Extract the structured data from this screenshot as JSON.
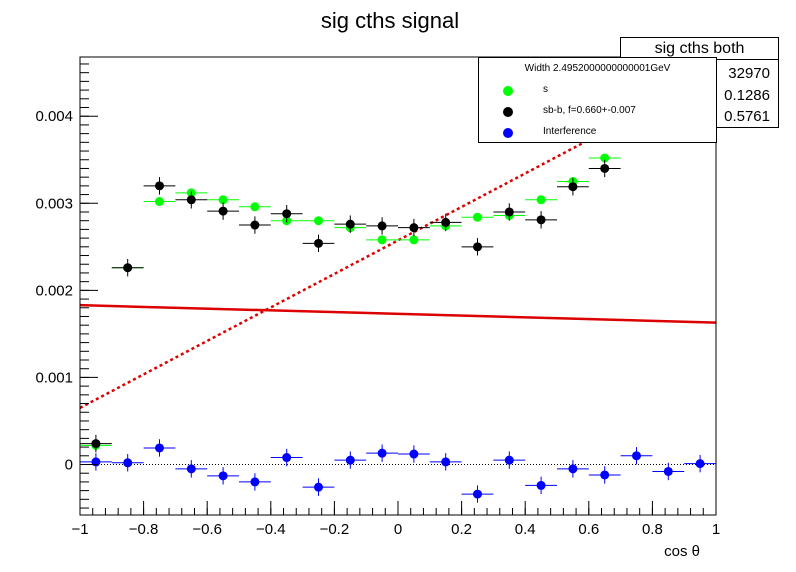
{
  "title": "sig cths signal",
  "stats": {
    "name": "sig cths both",
    "values": [
      "32970",
      "0.1286",
      "0.5761"
    ]
  },
  "legend": {
    "header": "Width 2.4952000000000001GeV",
    "entries": [
      {
        "label": "s",
        "color": "#00ff00"
      },
      {
        "label": "sb-b, f=0.660+-0.007",
        "color": "#000000"
      },
      {
        "label": "Interference",
        "color": "#0000ff"
      }
    ]
  },
  "chart_data": {
    "type": "scatter",
    "title": "sig cths signal",
    "xlabel": "cos  θ",
    "ylabel": "",
    "xlim": [
      -1,
      1
    ],
    "ylim": [
      -0.00058,
      0.00468
    ],
    "x_ticks": [
      -1,
      -0.8,
      -0.6,
      -0.4,
      -0.2,
      0,
      0.2,
      0.4,
      0.6,
      0.8,
      1
    ],
    "x_tick_labels": [
      "−1",
      "−0.8",
      "−0.6",
      "−0.4",
      "−0.2",
      "0",
      "0.2",
      "0.4",
      "0.6",
      "0.8",
      "1"
    ],
    "y_ticks": [
      0,
      0.001,
      0.002,
      0.003,
      0.004
    ],
    "y_tick_labels": [
      "0",
      "0.001",
      "0.002",
      "0.003",
      "0.004"
    ],
    "grid": false,
    "bin_half_width": 0.05,
    "series": [
      {
        "name": "s",
        "color": "#00ff00",
        "x": [
          -0.95,
          -0.85,
          -0.75,
          -0.65,
          -0.55,
          -0.45,
          -0.35,
          -0.25,
          -0.15,
          -0.05,
          0.05,
          0.15,
          0.25,
          0.35,
          0.45,
          0.55,
          0.65
        ],
        "y": [
          0.00022,
          0.00226,
          0.00302,
          0.00312,
          0.00304,
          0.00296,
          0.0028,
          0.0028,
          0.00272,
          0.00258,
          0.00258,
          0.00274,
          0.00284,
          0.00286,
          0.00304,
          0.00325,
          0.00352
        ],
        "yerr": [
          4e-05,
          4e-05,
          4e-05,
          4e-05,
          4e-05,
          4e-05,
          4e-05,
          4e-05,
          4e-05,
          4e-05,
          4e-05,
          4e-05,
          4e-05,
          4e-05,
          4e-05,
          4e-05,
          4e-05
        ]
      },
      {
        "name": "sb-b, f=0.660+-0.007",
        "color": "#000000",
        "x": [
          -0.95,
          -0.85,
          -0.75,
          -0.65,
          -0.55,
          -0.45,
          -0.35,
          -0.25,
          -0.15,
          -0.05,
          0.05,
          0.15,
          0.25,
          0.35,
          0.45,
          0.55,
          0.65
        ],
        "y": [
          0.00024,
          0.00226,
          0.0032,
          0.00304,
          0.00291,
          0.00275,
          0.00288,
          0.00254,
          0.00276,
          0.00274,
          0.00272,
          0.00278,
          0.0025,
          0.0029,
          0.00281,
          0.00319,
          0.0034
        ],
        "yerr": [
          0.0001,
          0.0001,
          0.0001,
          0.0001,
          0.0001,
          0.0001,
          0.0001,
          0.0001,
          0.0001,
          0.0001,
          0.0001,
          0.0001,
          0.0001,
          0.0001,
          0.0001,
          0.0001,
          0.0001
        ]
      },
      {
        "name": "Interference",
        "color": "#0000ff",
        "x": [
          -0.95,
          -0.85,
          -0.75,
          -0.65,
          -0.55,
          -0.45,
          -0.35,
          -0.25,
          -0.15,
          -0.05,
          0.05,
          0.15,
          0.25,
          0.35,
          0.45,
          0.55,
          0.65,
          0.75,
          0.85,
          0.95
        ],
        "y": [
          3e-05,
          2e-05,
          0.00019,
          -5e-05,
          -0.00013,
          -0.0002,
          8e-05,
          -0.00026,
          5e-05,
          0.00013,
          0.00012,
          3e-05,
          -0.00034,
          5e-05,
          -0.00024,
          -5e-05,
          -0.00012,
          0.0001,
          -8e-05,
          1e-05
        ],
        "yerr": [
          0.0001,
          0.0001,
          0.0001,
          0.0001,
          0.0001,
          0.0001,
          0.0001,
          0.0001,
          0.0001,
          0.0001,
          0.0001,
          0.0001,
          0.0001,
          0.0001,
          0.0001,
          0.0001,
          0.0001,
          0.0001,
          0.0001,
          0.0001
        ]
      }
    ],
    "lines": [
      {
        "style": "solid",
        "color": "#dd0000",
        "x": [
          -1,
          1
        ],
        "y": [
          0.00183,
          0.00163
        ]
      },
      {
        "style": "dotted",
        "color": "#dd0000",
        "x": [
          -1,
          0.7
        ],
        "y": [
          0.00065,
          0.00392
        ]
      },
      {
        "style": "dotted",
        "color": "#000000",
        "x": [
          -1,
          1
        ],
        "y": [
          0,
          0
        ]
      }
    ]
  }
}
